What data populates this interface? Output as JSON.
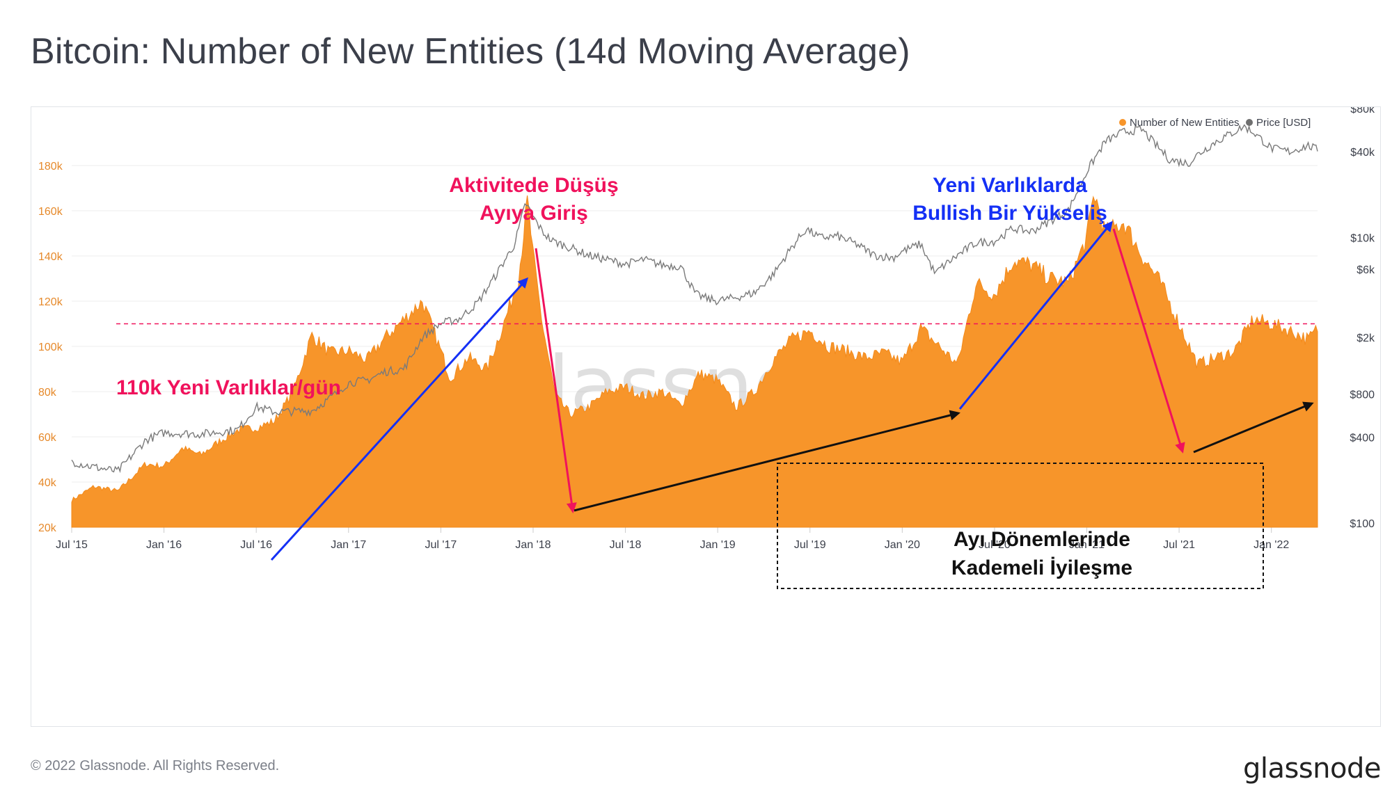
{
  "title": "Bitcoin: Number of New Entities (14d Moving Average)",
  "footer": {
    "copyright": "© 2022 Glassnode. All Rights Reserved.",
    "logo": "glassnode"
  },
  "watermark": "glassnode",
  "colors": {
    "entities": "#f7952a",
    "price": "#7f7f7f",
    "red": "#f0125c",
    "blue": "#1430f5",
    "black": "#111111"
  },
  "chart_data": {
    "type": "area",
    "x_tick_labels": [
      "Jul '15",
      "Jan '16",
      "Jul '16",
      "Jan '17",
      "Jul '17",
      "Jan '18",
      "Jul '18",
      "Jan '19",
      "Jul '19",
      "Jan '20",
      "Jul '20",
      "Jan '21",
      "Jul '21",
      "Jan '22"
    ],
    "x_range": [
      "2015-07",
      "2022-04"
    ],
    "y_left": {
      "label": "",
      "ticks": [
        "20k",
        "40k",
        "60k",
        "80k",
        "100k",
        "120k",
        "140k",
        "160k",
        "180k"
      ],
      "range": [
        20000,
        185000
      ]
    },
    "y_right": {
      "label": "",
      "scale": "log",
      "ticks": [
        "$100",
        "$400",
        "$800",
        "$2k",
        "$6k",
        "$10k",
        "$40k",
        "$80k"
      ],
      "tick_values": [
        100,
        400,
        800,
        2000,
        6000,
        10000,
        40000,
        80000
      ],
      "range": [
        100,
        80000
      ]
    },
    "legend": {
      "placement": "top-right",
      "items": [
        {
          "name": "Number of New Entities",
          "color": "#f7952a"
        },
        {
          "name": "Price [USD]",
          "color": "#7f7f7f"
        }
      ]
    },
    "series": [
      {
        "name": "Number of New Entities",
        "type": "area",
        "x": [
          2015.5,
          2015.62,
          2015.75,
          2015.9,
          2016.0,
          2016.1,
          2016.2,
          2016.3,
          2016.4,
          2016.5,
          2016.6,
          2016.7,
          2016.8,
          2016.9,
          2017.0,
          2017.1,
          2017.2,
          2017.3,
          2017.4,
          2017.5,
          2017.55,
          2017.65,
          2017.75,
          2017.85,
          2017.92,
          2017.97,
          2018.0,
          2018.05,
          2018.12,
          2018.2,
          2018.3,
          2018.4,
          2018.5,
          2018.6,
          2018.7,
          2018.8,
          2018.9,
          2019.0,
          2019.1,
          2019.2,
          2019.3,
          2019.4,
          2019.5,
          2019.6,
          2019.7,
          2019.8,
          2019.9,
          2020.0,
          2020.1,
          2020.2,
          2020.3,
          2020.4,
          2020.5,
          2020.6,
          2020.7,
          2020.8,
          2020.9,
          2021.0,
          2021.04,
          2021.1,
          2021.2,
          2021.3,
          2021.4,
          2021.5,
          2021.6,
          2021.7,
          2021.8,
          2021.9,
          2022.0,
          2022.1,
          2022.2,
          2022.25
        ],
        "values": [
          32000,
          38000,
          36000,
          48000,
          47000,
          55000,
          52000,
          58000,
          63000,
          64000,
          67000,
          80000,
          105000,
          97000,
          98000,
          94000,
          104000,
          112000,
          120000,
          98000,
          86000,
          95000,
          90000,
          112000,
          130000,
          165000,
          140000,
          110000,
          78000,
          70000,
          73000,
          80000,
          82000,
          78000,
          80000,
          74000,
          88000,
          85000,
          73000,
          80000,
          94000,
          103000,
          107000,
          100000,
          98000,
          95000,
          97000,
          93000,
          108000,
          100000,
          92000,
          128000,
          123000,
          138000,
          136000,
          130000,
          128000,
          148000,
          168000,
          150000,
          155000,
          140000,
          128000,
          110000,
          92000,
          95000,
          98000,
          112000,
          110000,
          107000,
          103000,
          108000
        ]
      },
      {
        "name": "Price [USD]",
        "type": "line",
        "x": [
          2015.5,
          2015.6,
          2015.75,
          2015.9,
          2016.0,
          2016.2,
          2016.4,
          2016.5,
          2016.6,
          2016.8,
          2016.9,
          2017.0,
          2017.1,
          2017.2,
          2017.3,
          2017.4,
          2017.5,
          2017.6,
          2017.7,
          2017.8,
          2017.9,
          2017.96,
          2018.0,
          2018.05,
          2018.1,
          2018.2,
          2018.3,
          2018.4,
          2018.5,
          2018.6,
          2018.7,
          2018.8,
          2018.88,
          2018.95,
          2019.0,
          2019.1,
          2019.2,
          2019.3,
          2019.4,
          2019.48,
          2019.55,
          2019.65,
          2019.75,
          2019.85,
          2019.95,
          2020.0,
          2020.1,
          2020.18,
          2020.2,
          2020.3,
          2020.4,
          2020.5,
          2020.6,
          2020.7,
          2020.8,
          2020.9,
          2021.0,
          2021.05,
          2021.1,
          2021.2,
          2021.3,
          2021.35,
          2021.45,
          2021.55,
          2021.6,
          2021.7,
          2021.8,
          2021.85,
          2021.9,
          2022.0,
          2022.1,
          2022.2,
          2022.25
        ],
        "values": [
          270,
          250,
          230,
          380,
          430,
          420,
          450,
          650,
          600,
          610,
          750,
          960,
          1000,
          1150,
          1200,
          2000,
          2500,
          2700,
          3500,
          5500,
          9000,
          17500,
          14000,
          11000,
          9500,
          8500,
          7500,
          7000,
          6500,
          7000,
          6400,
          6300,
          4000,
          3700,
          3600,
          3800,
          4100,
          5500,
          8500,
          11500,
          10000,
          10200,
          9000,
          7500,
          7200,
          8000,
          9000,
          5500,
          6000,
          7500,
          9200,
          9400,
          11600,
          11000,
          13000,
          15500,
          29000,
          37000,
          47000,
          55000,
          57000,
          48000,
          35000,
          33000,
          38000,
          47000,
          55000,
          60000,
          55000,
          42000,
          40000,
          44000,
          41000
        ]
      }
    ],
    "annotations": {
      "threshold": "110k Yeni Varlıklar/gün",
      "peak_line1": "Aktivitede Düşüş",
      "peak_line2": "Ayıya Giriş",
      "bull_line1": "Yeni Varlıklarda",
      "bull_line2": "Bullish Bir Yükseliş",
      "bear_line1": "Ayı Dönemlerinde",
      "bear_line2": "Kademeli İyileşme"
    }
  }
}
